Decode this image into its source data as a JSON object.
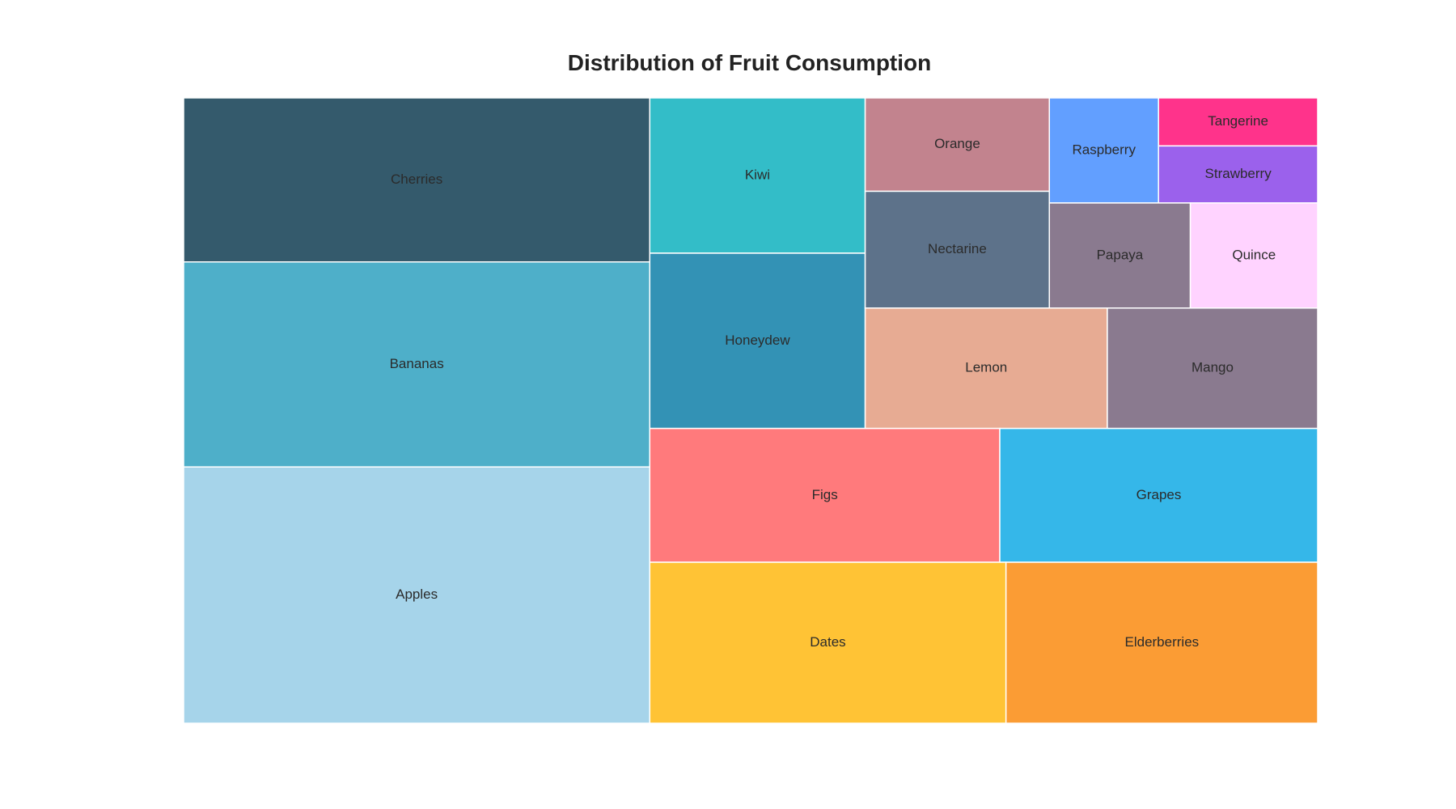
{
  "chart_data": {
    "type": "treemap",
    "title": "Distribution of Fruit Consumption",
    "leaves": [
      {
        "label": "Apples",
        "value": 25,
        "color": "#a6d4ea"
      },
      {
        "label": "Bananas",
        "value": 20,
        "color": "#4eafc9"
      },
      {
        "label": "Cherries",
        "value": 16,
        "color": "#345a6c"
      },
      {
        "label": "Dates",
        "value": 12,
        "color": "#ffc335"
      },
      {
        "label": "Elderberries",
        "value": 10.5,
        "color": "#fb9c34"
      },
      {
        "label": "Figs",
        "value": 9.8,
        "color": "#ff7a7c"
      },
      {
        "label": "Grapes",
        "value": 8.9,
        "color": "#35b7e9"
      },
      {
        "label": "Honeydew",
        "value": 7.9,
        "color": "#3392b5"
      },
      {
        "label": "Kiwi",
        "value": 7,
        "color": "#33bdc8"
      },
      {
        "label": "Lemon",
        "value": 6.1,
        "color": "#e7ab93"
      },
      {
        "label": "Mango",
        "value": 5.3,
        "color": "#8a7a8f"
      },
      {
        "label": "Nectarine",
        "value": 4.5,
        "color": "#5d728a"
      },
      {
        "label": "Orange",
        "value": 3.6,
        "color": "#c2838e"
      },
      {
        "label": "Papaya",
        "value": 3.1,
        "color": "#8a7a8f"
      },
      {
        "label": "Quince",
        "value": 2.8,
        "color": "#ffd3ff"
      },
      {
        "label": "Raspberry",
        "value": 2.4,
        "color": "#629fff"
      },
      {
        "label": "Strawberry",
        "value": 1.9,
        "color": "#9b61ec"
      },
      {
        "label": "Tangerine",
        "value": 1.6,
        "color": "#ff338b"
      }
    ]
  }
}
